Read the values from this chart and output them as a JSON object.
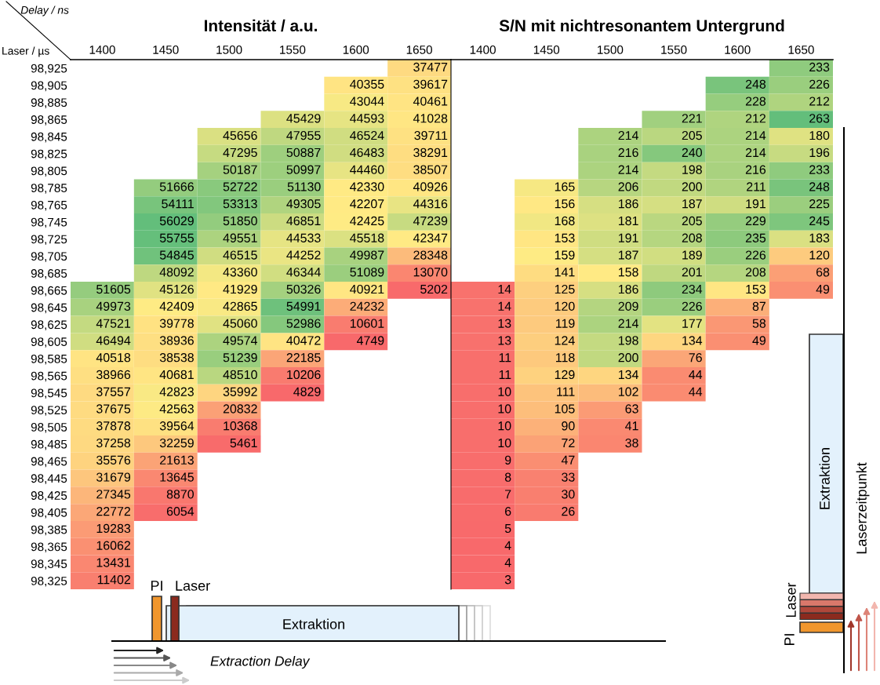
{
  "chart_data": [
    {
      "type": "heatmap",
      "title": "Intensität / a.u.",
      "xlabel": "Delay / ns",
      "ylabel": "Laser / µs",
      "categories": [
        "1400",
        "1450",
        "1500",
        "1550",
        "1600",
        "1650"
      ],
      "y_categories": [
        "98,925",
        "98,905",
        "98,885",
        "98,865",
        "98,845",
        "98,825",
        "98,805",
        "98,785",
        "98,765",
        "98,745",
        "98,725",
        "98,705",
        "98,685",
        "98,665",
        "98,645",
        "98,625",
        "98,605",
        "98,585",
        "98,565",
        "98,545",
        "98,525",
        "98,505",
        "98,485",
        "98,465",
        "98,445",
        "98,425",
        "98,405",
        "98,385",
        "98,365",
        "98,345",
        "98,325"
      ],
      "cells": [
        [
          null,
          null,
          null,
          null,
          null,
          37477
        ],
        [
          null,
          null,
          null,
          null,
          40355,
          39617
        ],
        [
          null,
          null,
          null,
          null,
          43044,
          40461
        ],
        [
          null,
          null,
          null,
          45429,
          44593,
          41028
        ],
        [
          null,
          null,
          45656,
          47955,
          46524,
          39711
        ],
        [
          null,
          null,
          47295,
          50887,
          46483,
          38291
        ],
        [
          null,
          null,
          50187,
          50997,
          44460,
          38507
        ],
        [
          null,
          51666,
          52722,
          51130,
          42330,
          40926
        ],
        [
          null,
          54111,
          53313,
          49305,
          42207,
          44316
        ],
        [
          null,
          56029,
          51850,
          46851,
          42425,
          47239
        ],
        [
          null,
          55755,
          49551,
          44533,
          45518,
          42347
        ],
        [
          null,
          54845,
          46515,
          44252,
          49987,
          28348
        ],
        [
          null,
          48092,
          43360,
          46344,
          51089,
          13070
        ],
        [
          51605,
          45126,
          41929,
          50326,
          40921,
          5202
        ],
        [
          49973,
          42409,
          42865,
          54991,
          24232,
          null
        ],
        [
          47521,
          39778,
          45060,
          52986,
          10601,
          null
        ],
        [
          46494,
          38936,
          49574,
          40472,
          4749,
          null
        ],
        [
          40518,
          38538,
          51239,
          22185,
          null,
          null
        ],
        [
          38966,
          40681,
          48510,
          10206,
          null,
          null
        ],
        [
          37557,
          42823,
          35992,
          4829,
          null,
          null
        ],
        [
          37675,
          42563,
          20832,
          null,
          null,
          null
        ],
        [
          37878,
          39564,
          10368,
          null,
          null,
          null
        ],
        [
          37258,
          32259,
          5461,
          null,
          null,
          null
        ],
        [
          35576,
          21613,
          null,
          null,
          null,
          null
        ],
        [
          31679,
          13645,
          null,
          null,
          null,
          null
        ],
        [
          27345,
          8870,
          null,
          null,
          null,
          null
        ],
        [
          22772,
          6054,
          null,
          null,
          null,
          null
        ],
        [
          19283,
          null,
          null,
          null,
          null,
          null
        ],
        [
          16062,
          null,
          null,
          null,
          null,
          null
        ],
        [
          13431,
          null,
          null,
          null,
          null,
          null
        ],
        [
          11402,
          null,
          null,
          null,
          null,
          null
        ]
      ],
      "data_labels": true,
      "annotations": [
        "PI",
        "Laser",
        "Extraktion",
        "Extraction Delay"
      ]
    },
    {
      "type": "heatmap",
      "title": "S/N mit nichtresonantem Untergrund",
      "categories": [
        "1400",
        "1450",
        "1500",
        "1550",
        "1600",
        "1650"
      ],
      "y_categories": [
        "98,925",
        "98,905",
        "98,885",
        "98,865",
        "98,845",
        "98,825",
        "98,805",
        "98,785",
        "98,765",
        "98,745",
        "98,725",
        "98,705",
        "98,685",
        "98,665",
        "98,645",
        "98,625",
        "98,605",
        "98,585",
        "98,565",
        "98,545",
        "98,525",
        "98,505",
        "98,485",
        "98,465",
        "98,445",
        "98,425",
        "98,405",
        "98,385",
        "98,365",
        "98,345",
        "98,325"
      ],
      "cells": [
        [
          null,
          null,
          null,
          null,
          null,
          233
        ],
        [
          null,
          null,
          null,
          null,
          248,
          226
        ],
        [
          null,
          null,
          null,
          null,
          228,
          212
        ],
        [
          null,
          null,
          null,
          221,
          212,
          263
        ],
        [
          null,
          null,
          214,
          205,
          214,
          180
        ],
        [
          null,
          null,
          216,
          240,
          214,
          196
        ],
        [
          null,
          null,
          214,
          198,
          216,
          233
        ],
        [
          null,
          165,
          206,
          200,
          211,
          248
        ],
        [
          null,
          156,
          186,
          187,
          191,
          225
        ],
        [
          null,
          168,
          181,
          205,
          229,
          245
        ],
        [
          null,
          153,
          191,
          208,
          235,
          183
        ],
        [
          null,
          159,
          187,
          189,
          226,
          120
        ],
        [
          null,
          141,
          158,
          201,
          208,
          68
        ],
        [
          14,
          125,
          186,
          234,
          153,
          49
        ],
        [
          14,
          120,
          209,
          226,
          87,
          null
        ],
        [
          13,
          119,
          214,
          177,
          58,
          null
        ],
        [
          13,
          124,
          198,
          134,
          49,
          null
        ],
        [
          11,
          118,
          200,
          76,
          null,
          null
        ],
        [
          11,
          129,
          134,
          44,
          null,
          null
        ],
        [
          10,
          111,
          102,
          44,
          null,
          null
        ],
        [
          10,
          105,
          63,
          null,
          null,
          null
        ],
        [
          10,
          90,
          41,
          null,
          null,
          null
        ],
        [
          10,
          72,
          38,
          null,
          null,
          null
        ],
        [
          9,
          47,
          null,
          null,
          null,
          null
        ],
        [
          8,
          33,
          null,
          null,
          null,
          null
        ],
        [
          7,
          30,
          null,
          null,
          null,
          null
        ],
        [
          6,
          26,
          null,
          null,
          null,
          null
        ],
        [
          5,
          null,
          null,
          null,
          null,
          null
        ],
        [
          4,
          null,
          null,
          null,
          null,
          null
        ],
        [
          4,
          null,
          null,
          null,
          null,
          null
        ],
        [
          3,
          null,
          null,
          null,
          null,
          null
        ]
      ],
      "data_labels": true,
      "tick_labels": "x",
      "annotations": [
        "Extraktion",
        "Laser",
        "PI",
        "Laserzeitpunkt"
      ]
    }
  ]
}
